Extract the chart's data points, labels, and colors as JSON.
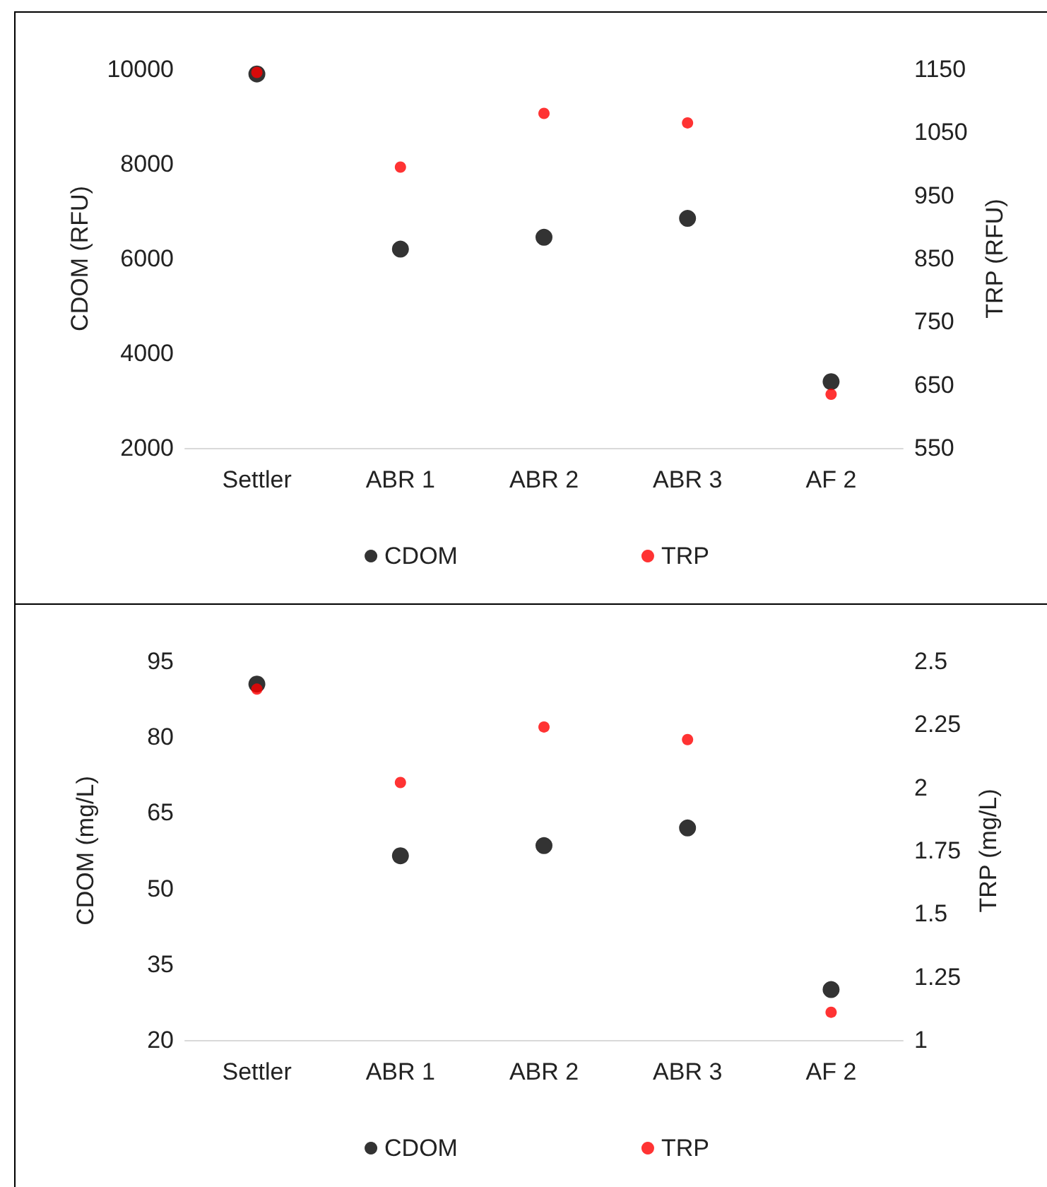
{
  "chart_data": [
    {
      "type": "scatter",
      "categories": [
        "Settler",
        "ABR 1",
        "ABR 2",
        "ABR 3",
        "AF 2"
      ],
      "ylabel": "CDOM (RFU)",
      "y2label": "TRP (RFU)",
      "ylim": [
        2000,
        10000
      ],
      "yticks": [
        2000,
        4000,
        6000,
        8000,
        10000
      ],
      "y2lim": [
        550,
        1150
      ],
      "y2ticks": [
        550,
        650,
        750,
        850,
        950,
        1050,
        1150
      ],
      "marker": "circle",
      "grid": false,
      "legend": "bottom",
      "series": [
        {
          "name": "CDOM",
          "color": "#000000",
          "values": [
            9900,
            6200,
            6450,
            6850,
            3400
          ]
        },
        {
          "name": "TRP",
          "color": "#ff0000",
          "axis": "y2",
          "values": [
            1145,
            995,
            1080,
            1065,
            635
          ]
        }
      ]
    },
    {
      "type": "scatter",
      "categories": [
        "Settler",
        "ABR 1",
        "ABR 2",
        "ABR 3",
        "AF 2"
      ],
      "ylabel": "CDOM (mg/L)",
      "y2label": "TRP (mg/L)",
      "ylim": [
        20,
        95
      ],
      "yticks": [
        20,
        35,
        50,
        65,
        80,
        95
      ],
      "y2lim": [
        1,
        2.5
      ],
      "y2ticks": [
        1,
        1.25,
        1.5,
        1.75,
        2,
        2.25,
        2.5
      ],
      "marker": "circle",
      "grid": false,
      "legend": "bottom",
      "series": [
        {
          "name": "CDOM",
          "color": "#000000",
          "values": [
            90.5,
            56.5,
            58.5,
            62,
            30
          ]
        },
        {
          "name": "TRP",
          "color": "#ff0000",
          "axis": "y2",
          "values": [
            2.39,
            2.02,
            2.24,
            2.19,
            1.11
          ]
        }
      ]
    }
  ]
}
